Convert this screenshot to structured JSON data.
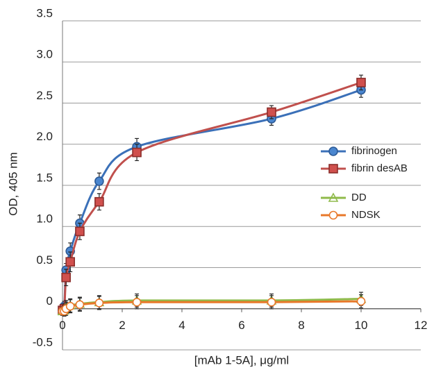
{
  "chart_data": {
    "type": "line",
    "x_label": "[mAb 1-5A], μg/ml",
    "y_label": "OD, 405 nm",
    "x": [
      0,
      0.06,
      0.12,
      0.26,
      0.58,
      1.23,
      2.49,
      7,
      10
    ],
    "series": [
      {
        "name": "fibrinogen",
        "color": "#3b70b8",
        "marker": "circle",
        "marker_fill": "#4a86cf",
        "values": [
          -0.02,
          0.03,
          0.47,
          0.7,
          1.04,
          1.55,
          1.97,
          2.31,
          2.66
        ],
        "errors": [
          0.05,
          0.06,
          0.08,
          0.1,
          0.1,
          0.1,
          0.1,
          0.08,
          0.09
        ]
      },
      {
        "name": "fibrin desAB",
        "color": "#c0504d",
        "marker": "square",
        "marker_fill": "#d0504d",
        "values": [
          -0.02,
          0.0,
          0.38,
          0.57,
          0.94,
          1.3,
          1.9,
          2.39,
          2.75
        ],
        "errors": [
          0.05,
          0.06,
          0.1,
          0.12,
          0.1,
          0.1,
          0.1,
          0.08,
          0.09
        ]
      },
      {
        "name": "DD",
        "color": "#8fba4a",
        "marker": "triangle",
        "marker_fill": "none",
        "values": [
          -0.03,
          -0.02,
          0.02,
          0.04,
          0.06,
          0.08,
          0.1,
          0.1,
          0.12
        ],
        "errors": [
          0.05,
          0.06,
          0.08,
          0.08,
          0.08,
          0.08,
          0.08,
          0.08,
          0.08
        ]
      },
      {
        "name": "NDSK",
        "color": "#e8782a",
        "marker": "circle-open",
        "marker_fill": "none",
        "values": [
          -0.03,
          -0.03,
          0.0,
          0.03,
          0.05,
          0.07,
          0.08,
          0.08,
          0.09
        ],
        "errors": [
          0.05,
          0.06,
          0.08,
          0.08,
          0.08,
          0.08,
          0.08,
          0.08,
          0.08
        ]
      }
    ],
    "xlim": [
      0,
      12
    ],
    "xticks": [
      0,
      2,
      4,
      6,
      8,
      10,
      12
    ],
    "ylim": [
      -0.5,
      3.5
    ],
    "yticks": [
      -0.5,
      0,
      0.5,
      {
        "value": 1,
        "label": "1.0"
      },
      1.5,
      {
        "value": 2,
        "label": "2.0"
      },
      2.5,
      {
        "value": 3,
        "label": "3.0"
      },
      3.5
    ],
    "grid": true,
    "legend": "right"
  }
}
